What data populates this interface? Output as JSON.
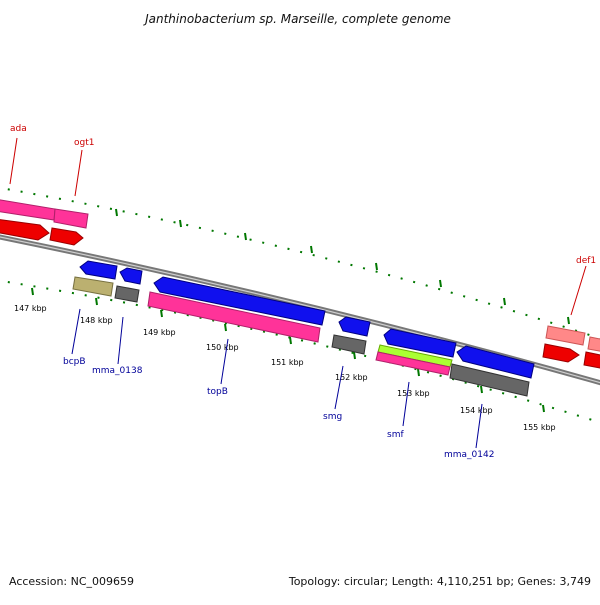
{
  "title": "Janthinobacterium sp. Marseille, complete genome",
  "footer": {
    "accession": "Accession: NC_009659",
    "summary": "Topology: circular; Length: 4,110,251 bp; Genes: 3,749"
  },
  "ruler_labels": [
    "147 kbp",
    "148 kbp",
    "149 kbp",
    "150 kbp",
    "151 kbp",
    "152 kbp",
    "153 kbp",
    "154 kbp",
    "155 kbp"
  ],
  "gene_labels_top": [
    "ada",
    "ogt1",
    "def1"
  ],
  "gene_labels_bottom": [
    "bcpB",
    "mma_0138",
    "topB",
    "smg",
    "smf",
    "mma_0142"
  ],
  "colors": {
    "backbone": "#777777",
    "tick": "#007700",
    "pink": "#ff3399",
    "red": "#ee0000",
    "blue": "#1010ee",
    "grey": "#666666",
    "khaki": "#bbb070",
    "lime": "#aaff33",
    "salmon": "#ff8888"
  }
}
